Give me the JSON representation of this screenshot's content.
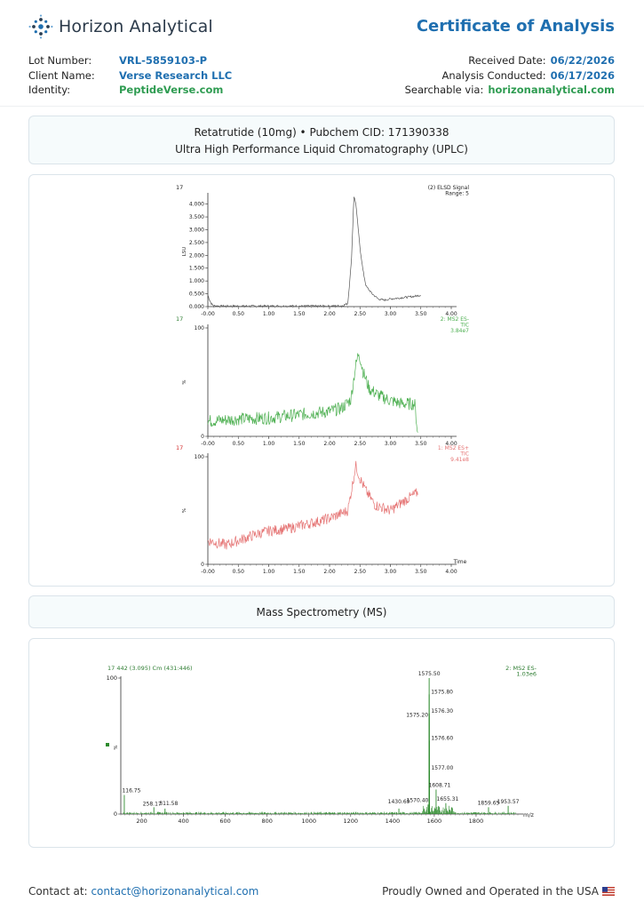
{
  "brand": {
    "name": "Horizon Analytical",
    "logo_icon": "dotted-starburst-logo"
  },
  "document_title": "Certificate of Analysis",
  "info_left": [
    {
      "label": "Lot Number:",
      "value": "VRL-5859103-P",
      "color": "#1f6fb0"
    },
    {
      "label": "Client Name:",
      "value": "Verse Research LLC",
      "color": "#1f6fb0"
    },
    {
      "label": "Identity:",
      "value": "PeptideVerse.com",
      "color": "#2f9c52"
    }
  ],
  "info_right": [
    {
      "label": "Received Date:",
      "value": "06/22/2026",
      "color": "#1f6fb0"
    },
    {
      "label": "Analysis Conducted:",
      "value": "06/17/2026",
      "color": "#1f6fb0"
    },
    {
      "label": "Searchable via:",
      "value": "horizonanalytical.com",
      "color": "#2f9c52"
    }
  ],
  "uplc_header": {
    "line1": "Retatrutide (10mg) • Pubchem CID: 171390338",
    "line2": "Ultra High Performance Liquid Chromatography (UPLC)"
  },
  "ms_header": {
    "line1": "Mass Spectrometry (MS)"
  },
  "footer": {
    "contact_label": "Contact at:",
    "contact_email": "contact@horizonanalytical.com",
    "ownership": "Proudly Owned and Operated in the USA",
    "flag_icon": "us-flag-icon"
  },
  "chart_data": [
    {
      "type": "line",
      "sample_id": "17",
      "series_label": [
        "(2) ELSD Signal",
        "Range: 5"
      ],
      "ylabel": "LSU",
      "color": "#555555",
      "x_ticks": [
        "-0.00",
        "0.50",
        "1.00",
        "1.50",
        "2.00",
        "2.50",
        "3.00",
        "3.50",
        "4.00"
      ],
      "y_ticks": [
        "0.000",
        "0.500",
        "1.000",
        "1.500",
        "2.000",
        "2.500",
        "3.000",
        "3.500",
        "4.000"
      ],
      "xlim": [
        0,
        4.0
      ],
      "ylim": [
        0,
        4.3
      ],
      "x": [
        0,
        0.03,
        0.06,
        0.1,
        0.2,
        0.5,
        1.0,
        1.5,
        2.0,
        2.2,
        2.3,
        2.36,
        2.4,
        2.43,
        2.46,
        2.5,
        2.55,
        2.6,
        2.7,
        2.8,
        2.9,
        3.0,
        3.2,
        3.4,
        3.5
      ],
      "y": [
        0.45,
        0.25,
        0.1,
        0.03,
        0.02,
        0.02,
        0.02,
        0.02,
        0.02,
        0.03,
        0.12,
        1.8,
        4.3,
        4.05,
        3.3,
        2.3,
        1.4,
        0.8,
        0.5,
        0.3,
        0.25,
        0.3,
        0.35,
        0.4,
        0.45
      ]
    },
    {
      "type": "line",
      "sample_id": "17",
      "series_label": [
        "2: MS2 ES-",
        "TIC",
        "3.84e7"
      ],
      "ylabel": "%",
      "color": "#4caf50",
      "x_ticks": [
        "-0.00",
        "0.50",
        "1.00",
        "1.50",
        "2.00",
        "2.50",
        "3.00",
        "3.50",
        "4.00"
      ],
      "y_ticks": [
        "0",
        "100"
      ],
      "xlim": [
        0,
        4.0
      ],
      "ylim": [
        0,
        100
      ],
      "x": [
        0,
        0.5,
        1.0,
        1.5,
        2.0,
        2.2,
        2.35,
        2.42,
        2.48,
        2.55,
        2.65,
        2.8,
        3.0,
        3.2,
        3.4,
        3.45
      ],
      "y": [
        14,
        16,
        17,
        20,
        23,
        26,
        34,
        62,
        78,
        60,
        44,
        38,
        33,
        30,
        30,
        2
      ]
    },
    {
      "type": "line",
      "sample_id": "17",
      "series_label": [
        "1: MS2 ES+",
        "TIC",
        "9.41e8"
      ],
      "ylabel": "%",
      "xlabel": "Time",
      "color": "#e57373",
      "x_ticks": [
        "-0.00",
        "0.50",
        "1.00",
        "1.50",
        "2.00",
        "2.50",
        "3.00",
        "3.50",
        "4.00"
      ],
      "y_ticks": [
        "0",
        "100"
      ],
      "xlim": [
        0,
        4.0
      ],
      "ylim": [
        0,
        100
      ],
      "x": [
        0,
        0.15,
        0.3,
        0.5,
        0.8,
        1.0,
        1.3,
        1.6,
        1.9,
        2.1,
        2.3,
        2.38,
        2.43,
        2.5,
        2.6,
        2.75,
        3.0,
        3.2,
        3.4,
        3.45
      ],
      "y": [
        22,
        20,
        18,
        22,
        28,
        31,
        33,
        37,
        41,
        45,
        50,
        75,
        92,
        80,
        68,
        55,
        50,
        58,
        65,
        67
      ]
    },
    {
      "type": "bar",
      "header_left": "17 442 (3.095) Cm (431:446)",
      "series_label": [
        "2: MS2 ES-",
        "1.03e6"
      ],
      "ylabel": "%",
      "xlabel": "m/z",
      "color": "#2e8b2e",
      "x_ticks": [
        "200",
        "400",
        "600",
        "800",
        "1000",
        "1200",
        "1400",
        "1600",
        "1800"
      ],
      "y_ticks": [
        "0",
        "100"
      ],
      "xlim": [
        100,
        2000
      ],
      "ylim": [
        0,
        100
      ],
      "peaks": [
        {
          "mz": 116.75,
          "intensity": 14,
          "label": "116.75"
        },
        {
          "mz": 258.17,
          "intensity": 5,
          "label": "258.17"
        },
        {
          "mz": 311.58,
          "intensity": 4,
          "label": "311.58"
        },
        {
          "mz": 1430.69,
          "intensity": 4,
          "label": "1430.69"
        },
        {
          "mz": 1570.4,
          "intensity": 7,
          "label": "1570.40"
        },
        {
          "mz": 1575.2,
          "intensity": 71,
          "label": "1575.20"
        },
        {
          "mz": 1575.5,
          "intensity": 100,
          "label": "1575.50"
        },
        {
          "mz": 1575.8,
          "intensity": 88,
          "label": "1575.80"
        },
        {
          "mz": 1576.3,
          "intensity": 74,
          "label": "1576.30"
        },
        {
          "mz": 1576.6,
          "intensity": 54,
          "label": "1576.60"
        },
        {
          "mz": 1577.0,
          "intensity": 32,
          "label": "1577.00"
        },
        {
          "mz": 1608.71,
          "intensity": 18,
          "label": "1608.71"
        },
        {
          "mz": 1655.31,
          "intensity": 8,
          "label": "1655.31"
        },
        {
          "mz": 1859.65,
          "intensity": 5,
          "label": "1859.65"
        },
        {
          "mz": 1953.57,
          "intensity": 6,
          "label": "1953.57"
        }
      ]
    }
  ]
}
